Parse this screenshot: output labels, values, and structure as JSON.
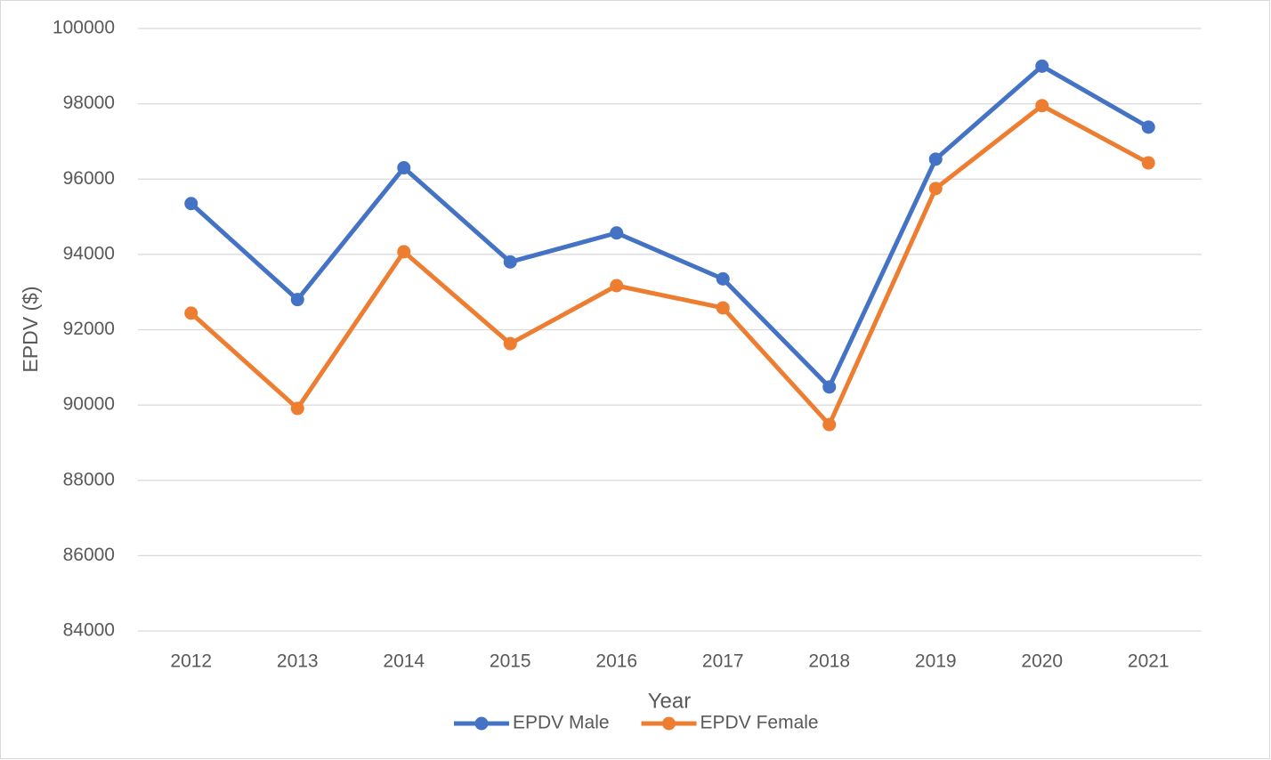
{
  "chart_data": {
    "type": "line",
    "categories": [
      "2012",
      "2013",
      "2014",
      "2015",
      "2016",
      "2017",
      "2018",
      "2019",
      "2020",
      "2021"
    ],
    "series": [
      {
        "name": "EPDV Male",
        "color": "#4472c4",
        "values": [
          95350,
          92800,
          96300,
          93800,
          94570,
          93350,
          90480,
          96530,
          99000,
          97380
        ]
      },
      {
        "name": "EPDV Female",
        "color": "#ed7d31",
        "values": [
          92440,
          89910,
          94070,
          91630,
          93170,
          92580,
          89480,
          95750,
          97950,
          96430
        ]
      }
    ],
    "ylabel": "EPDV ($)",
    "xlabel": "Year",
    "ylim": [
      84000,
      100000
    ],
    "yticks": [
      84000,
      86000,
      88000,
      90000,
      92000,
      94000,
      96000,
      98000,
      100000
    ],
    "grid": true,
    "legend": "bottom"
  }
}
